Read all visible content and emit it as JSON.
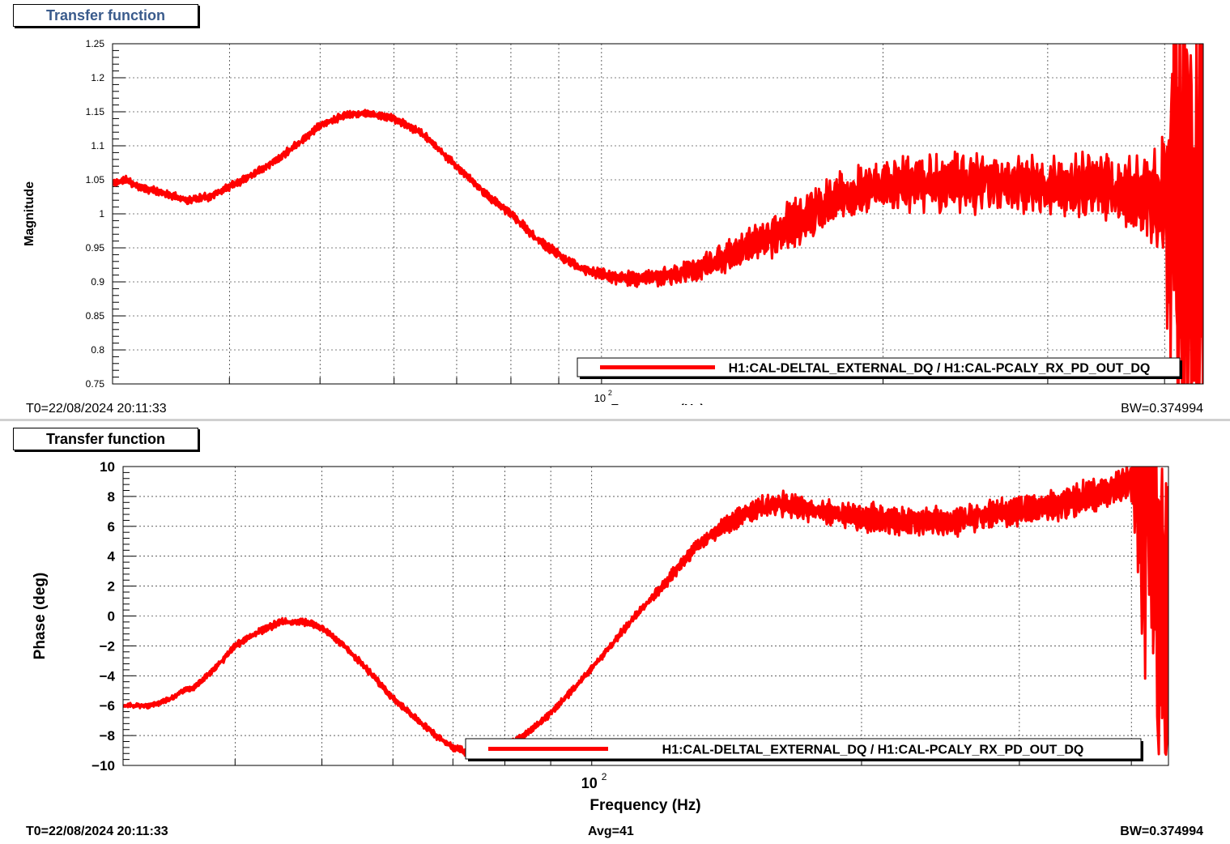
{
  "colors": {
    "trace": "#ff0000",
    "grid": "#000000",
    "title_top": "#3a5b8c"
  },
  "panels": [
    {
      "title": "Transfer function",
      "t0": "T0=22/08/2024 20:11:33",
      "avg": "",
      "bw": "BW=0.374994",
      "legend": "H1:CAL-DELTAL_EXTERNAL_DQ / H1:CAL-PCALY_RX_PD_OUT_DQ"
    },
    {
      "title": "Transfer function",
      "t0": "T0=22/08/2024 20:11:33",
      "avg": "Avg=41",
      "bw": "BW=0.374994",
      "legend": "H1:CAL-DELTAL_EXTERNAL_DQ / H1:CAL-PCALY_RX_PD_OUT_DQ"
    }
  ],
  "chart_data": [
    {
      "type": "line",
      "title": "Transfer function",
      "xlabel": "Frequency (Hz)",
      "ylabel": "Magnitude",
      "x_scale": "log",
      "xlim": [
        30,
        440
      ],
      "ylim": [
        0.75,
        1.25
      ],
      "x_tick_labels": [
        "10^2"
      ],
      "y_ticks": [
        0.75,
        0.8,
        0.85,
        0.9,
        0.95,
        1,
        1.05,
        1.1,
        1.15,
        1.2,
        1.25
      ],
      "y_tick_labels": [
        "0.75",
        "0.8",
        "0.85",
        "0.9",
        "0.95",
        "1",
        "1.05",
        "1.1",
        "1.15",
        "1.2",
        "1.25"
      ],
      "grid": true,
      "legend_position": "bottom-right",
      "series": [
        {
          "name": "H1:CAL-DELTAL_EXTERNAL_DQ / H1:CAL-PCALY_RX_PD_OUT_DQ",
          "x": [
            30,
            31,
            32,
            33,
            34,
            35,
            36,
            38,
            40,
            42,
            45,
            48,
            50,
            53,
            56,
            60,
            64,
            67,
            70,
            75,
            80,
            85,
            90,
            95,
            100,
            105,
            110,
            120,
            130,
            140,
            150,
            160,
            170,
            180,
            200,
            220,
            250,
            280,
            300,
            330,
            360,
            380,
            400,
            410,
            420,
            430,
            440
          ],
          "y": [
            1.045,
            1.05,
            1.04,
            1.035,
            1.03,
            1.025,
            1.02,
            1.025,
            1.04,
            1.055,
            1.08,
            1.11,
            1.13,
            1.145,
            1.148,
            1.14,
            1.12,
            1.095,
            1.07,
            1.03,
            1.0,
            0.965,
            0.94,
            0.92,
            0.91,
            0.905,
            0.905,
            0.91,
            0.925,
            0.945,
            0.965,
            0.985,
            1.005,
            1.025,
            1.04,
            1.045,
            1.045,
            1.045,
            1.04,
            1.04,
            1.035,
            1.03,
            1.02,
            1.0,
            0.98,
            1.0,
            1.0
          ],
          "noise_amplitude": [
            0.005,
            0.005,
            0.005,
            0.005,
            0.005,
            0.005,
            0.005,
            0.005,
            0.005,
            0.005,
            0.005,
            0.005,
            0.005,
            0.005,
            0.005,
            0.005,
            0.005,
            0.005,
            0.005,
            0.005,
            0.006,
            0.006,
            0.006,
            0.006,
            0.008,
            0.008,
            0.01,
            0.012,
            0.015,
            0.02,
            0.025,
            0.03,
            0.03,
            0.03,
            0.03,
            0.035,
            0.035,
            0.035,
            0.035,
            0.04,
            0.04,
            0.05,
            0.08,
            0.3,
            0.3,
            0.3,
            0.3
          ]
        }
      ]
    },
    {
      "type": "line",
      "title": "Transfer function",
      "xlabel": "Frequency (Hz)",
      "ylabel": "Phase (deg)",
      "x_scale": "log",
      "xlim": [
        30,
        440
      ],
      "ylim": [
        -10,
        10
      ],
      "x_tick_labels": [
        "10^2"
      ],
      "y_ticks": [
        -10,
        -8,
        -6,
        -4,
        -2,
        0,
        2,
        4,
        6,
        8,
        10
      ],
      "y_tick_labels": [
        "−10",
        "−8",
        "−6",
        "−4",
        "−2",
        "0",
        "2",
        "4",
        "6",
        "8",
        "10"
      ],
      "grid": true,
      "legend_position": "bottom-center",
      "series": [
        {
          "name": "H1:CAL-DELTAL_EXTERNAL_DQ / H1:CAL-PCALY_RX_PD_OUT_DQ",
          "x": [
            30,
            31,
            32,
            33,
            34,
            35,
            36,
            38,
            40,
            42,
            45,
            48,
            50,
            53,
            56,
            60,
            64,
            67,
            70,
            75,
            80,
            85,
            90,
            95,
            100,
            105,
            110,
            120,
            130,
            140,
            150,
            160,
            170,
            180,
            200,
            220,
            250,
            280,
            300,
            330,
            360,
            380,
            400,
            410,
            420,
            430,
            440
          ],
          "y": [
            -6.0,
            -6.0,
            -6.0,
            -5.8,
            -5.5,
            -5.0,
            -4.8,
            -3.5,
            -2.0,
            -1.2,
            -0.4,
            -0.4,
            -0.8,
            -2.0,
            -3.5,
            -5.5,
            -7.0,
            -8.0,
            -8.8,
            -9.4,
            -8.8,
            -7.8,
            -6.5,
            -5.0,
            -3.5,
            -2.0,
            -0.5,
            2.0,
            4.5,
            6.0,
            7.0,
            7.5,
            7.3,
            7.0,
            6.6,
            6.4,
            6.3,
            6.8,
            7.0,
            7.5,
            8.0,
            8.5,
            9.0,
            9.2,
            9.0,
            0,
            0
          ],
          "noise_amplitude": [
            0.15,
            0.15,
            0.15,
            0.15,
            0.15,
            0.15,
            0.15,
            0.2,
            0.2,
            0.2,
            0.2,
            0.2,
            0.2,
            0.2,
            0.2,
            0.2,
            0.2,
            0.2,
            0.2,
            0.2,
            0.2,
            0.2,
            0.2,
            0.2,
            0.2,
            0.2,
            0.25,
            0.3,
            0.4,
            0.5,
            0.6,
            0.7,
            0.7,
            0.7,
            0.8,
            0.8,
            0.8,
            0.8,
            0.8,
            0.9,
            0.9,
            0.9,
            1.0,
            10,
            10,
            10,
            10
          ]
        }
      ]
    }
  ]
}
